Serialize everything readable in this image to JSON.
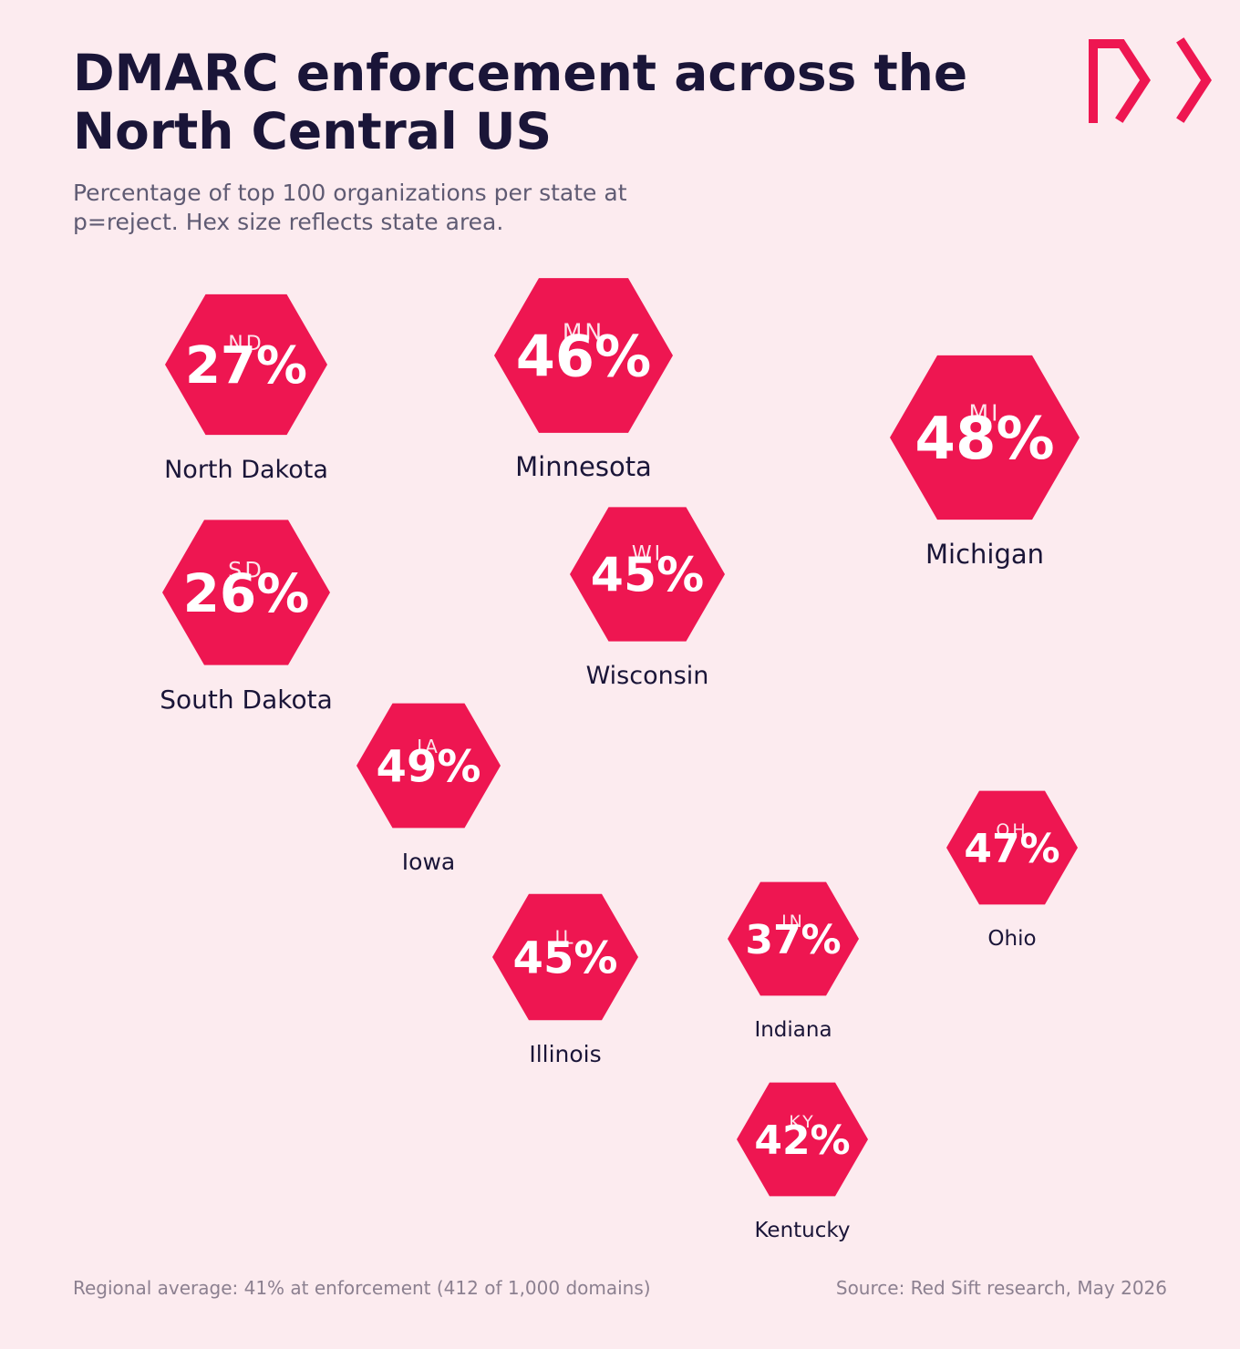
{
  "header": {
    "title": "DMARC enforcement across the North Central US",
    "subtitle": "Percentage of top 100 organizations per state at p=reject. Hex size reflects state area."
  },
  "brand": {
    "logo_icon": "red-sift-logo-icon",
    "accent_color": "#ee1651",
    "title_color": "#1a1538",
    "background_color": "#fcebef"
  },
  "states": [
    {
      "abbr": "ND",
      "value": "27%",
      "name": "North Dakota"
    },
    {
      "abbr": "MN",
      "value": "46%",
      "name": "Minnesota"
    },
    {
      "abbr": "MI",
      "value": "48%",
      "name": "Michigan"
    },
    {
      "abbr": "SD",
      "value": "26%",
      "name": "South Dakota"
    },
    {
      "abbr": "WI",
      "value": "45%",
      "name": "Wisconsin"
    },
    {
      "abbr": "IA",
      "value": "49%",
      "name": "Iowa"
    },
    {
      "abbr": "OH",
      "value": "47%",
      "name": "Ohio"
    },
    {
      "abbr": "IL",
      "value": "45%",
      "name": "Illinois"
    },
    {
      "abbr": "IN",
      "value": "37%",
      "name": "Indiana"
    },
    {
      "abbr": "KY",
      "value": "42%",
      "name": "Kentucky"
    }
  ],
  "footer": {
    "regional_average": "Regional average: 41% at enforcement (412 of 1,000 domains)",
    "source": "Source: Red Sift research, May 2026"
  }
}
